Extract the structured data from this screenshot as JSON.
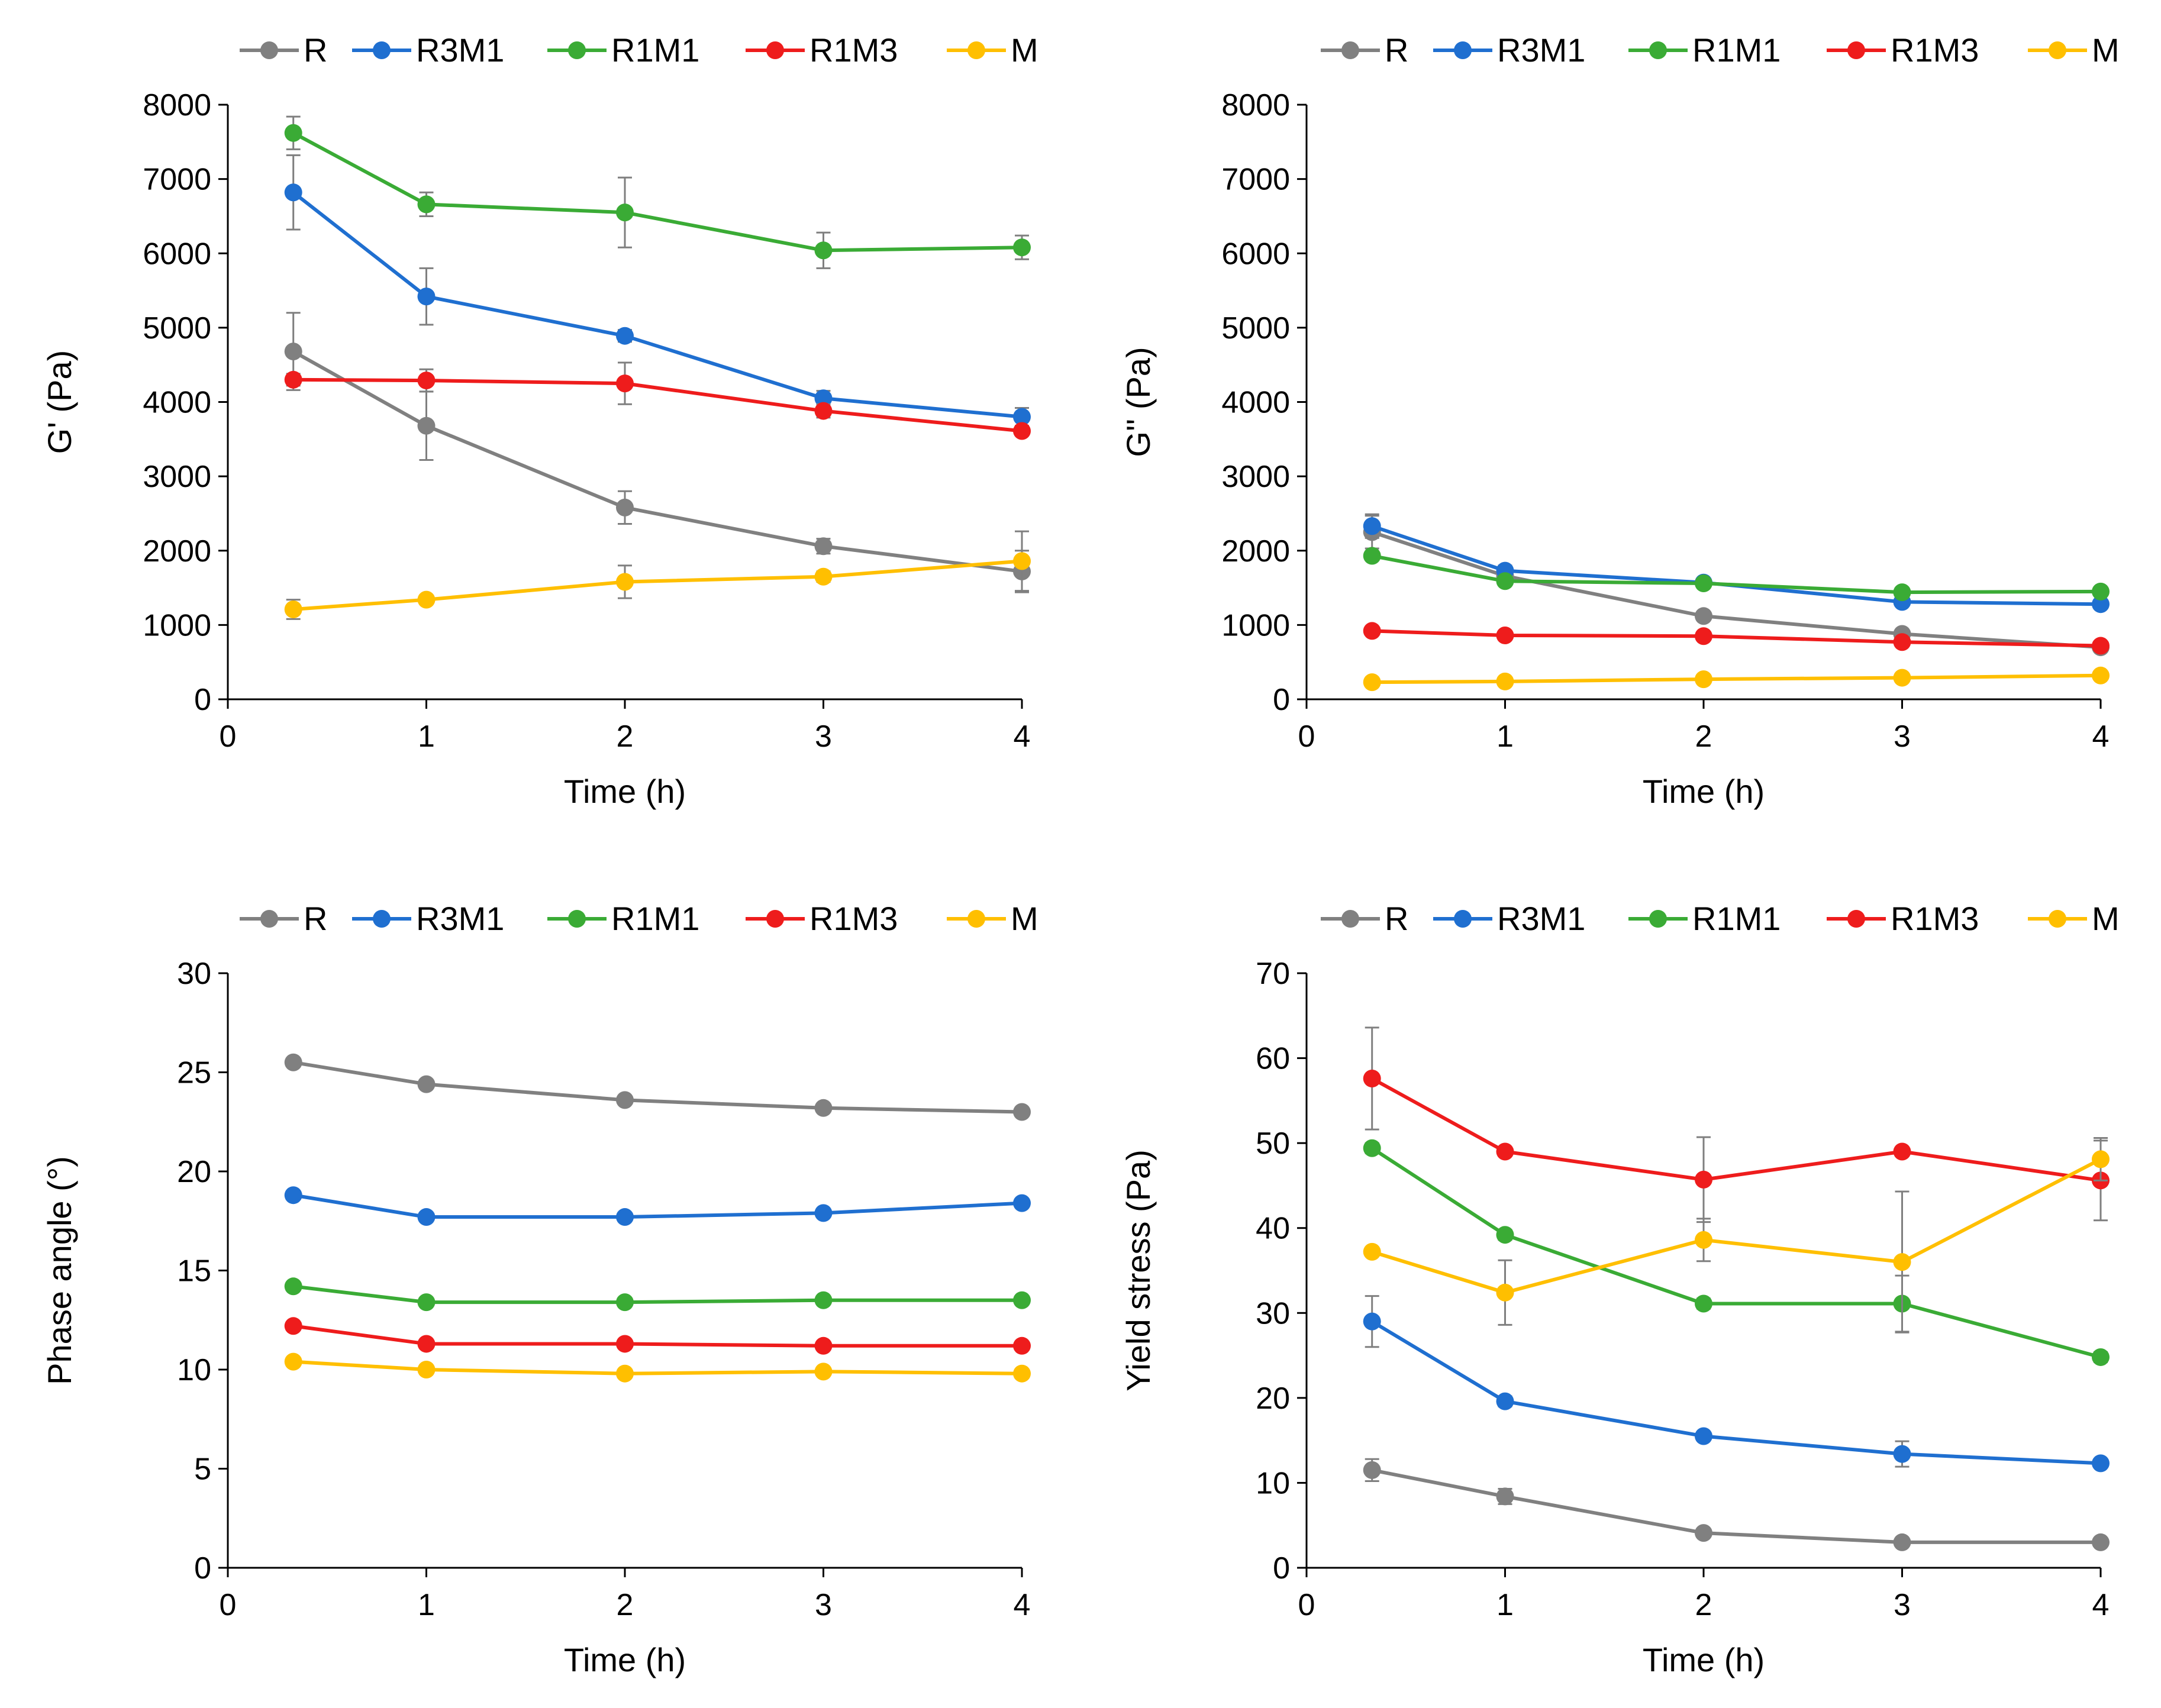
{
  "figure": {
    "description_free": true
  },
  "chart_data": [
    {
      "type": "line",
      "xlabel": "Time (h)",
      "ylabel": "G' (Pa)",
      "xlim": [
        0,
        4
      ],
      "ylim": [
        0,
        8000
      ],
      "xticks": [
        "0",
        "1",
        "2",
        "3",
        "4"
      ],
      "yticks": [
        "0",
        "1000",
        "2000",
        "3000",
        "4000",
        "5000",
        "6000",
        "7000",
        "8000"
      ],
      "ytick_values": [
        0,
        1000,
        2000,
        3000,
        4000,
        5000,
        6000,
        7000,
        8000
      ],
      "x": [
        0.33,
        1,
        2,
        3,
        4
      ],
      "legend_position": "top",
      "series": [
        {
          "name": "R",
          "color": "#808080",
          "values": [
            4680,
            3680,
            2580,
            2060,
            1720
          ],
          "errors": [
            520,
            460,
            220,
            100,
            280
          ]
        },
        {
          "name": "R3M1",
          "color": "#1f6fd0",
          "values": [
            6820,
            5420,
            4890,
            4050,
            3800
          ],
          "errors": [
            500,
            380,
            80,
            100,
            120
          ]
        },
        {
          "name": "R1M1",
          "color": "#3aab35",
          "values": [
            7620,
            6660,
            6550,
            6040,
            6080
          ],
          "errors": [
            220,
            160,
            470,
            240,
            160
          ]
        },
        {
          "name": "R1M3",
          "color": "#ee1c1c",
          "values": [
            4300,
            4290,
            4250,
            3880,
            3610
          ],
          "errors": [
            80,
            150,
            280,
            90,
            60
          ]
        },
        {
          "name": "M",
          "color": "#ffbf00",
          "values": [
            1210,
            1340,
            1580,
            1650,
            1860
          ],
          "errors": [
            130,
            60,
            220,
            70,
            400
          ]
        }
      ]
    },
    {
      "type": "line",
      "xlabel": "Time (h)",
      "ylabel": "G'' (Pa)",
      "xlim": [
        0,
        4
      ],
      "ylim": [
        0,
        8000
      ],
      "xticks": [
        "0",
        "1",
        "2",
        "3",
        "4"
      ],
      "yticks": [
        "0",
        "1000",
        "2000",
        "3000",
        "4000",
        "5000",
        "6000",
        "7000",
        "8000"
      ],
      "ytick_values": [
        0,
        1000,
        2000,
        3000,
        4000,
        5000,
        6000,
        7000,
        8000
      ],
      "x": [
        0.33,
        1,
        2,
        3,
        4
      ],
      "legend_position": "top",
      "series": [
        {
          "name": "R",
          "color": "#808080",
          "values": [
            2250,
            1660,
            1120,
            880,
            700
          ],
          "errors": [
            220,
            60,
            60,
            50,
            40
          ]
        },
        {
          "name": "R3M1",
          "color": "#1f6fd0",
          "values": [
            2330,
            1730,
            1570,
            1310,
            1280
          ],
          "errors": [
            160,
            70,
            40,
            40,
            40
          ]
        },
        {
          "name": "R1M1",
          "color": "#3aab35",
          "values": [
            1930,
            1590,
            1560,
            1440,
            1450
          ],
          "errors": [
            40,
            40,
            40,
            40,
            40
          ]
        },
        {
          "name": "R1M3",
          "color": "#ee1c1c",
          "values": [
            920,
            860,
            850,
            770,
            720
          ],
          "errors": [
            30,
            30,
            30,
            30,
            30
          ]
        },
        {
          "name": "M",
          "color": "#ffbf00",
          "values": [
            230,
            240,
            270,
            290,
            320
          ],
          "errors": [
            20,
            20,
            20,
            20,
            20
          ]
        }
      ]
    },
    {
      "type": "line",
      "xlabel": "Time (h)",
      "ylabel": "Phase angle (°)",
      "xlim": [
        0,
        4
      ],
      "ylim": [
        0,
        30
      ],
      "xticks": [
        "0",
        "1",
        "2",
        "3",
        "4"
      ],
      "yticks": [
        "0",
        "5",
        "10",
        "15",
        "20",
        "25",
        "30"
      ],
      "ytick_values": [
        0,
        5,
        10,
        15,
        20,
        25,
        30
      ],
      "x": [
        0.33,
        1,
        2,
        3,
        4
      ],
      "legend_position": "top",
      "series": [
        {
          "name": "R",
          "color": "#808080",
          "values": [
            25.5,
            24.4,
            23.6,
            23.2,
            23.0
          ],
          "errors": [
            0.1,
            0.1,
            0.1,
            0.1,
            0.1
          ]
        },
        {
          "name": "R3M1",
          "color": "#1f6fd0",
          "values": [
            18.8,
            17.7,
            17.7,
            17.9,
            18.4
          ],
          "errors": [
            0.1,
            0.1,
            0.1,
            0.1,
            0.1
          ]
        },
        {
          "name": "R1M1",
          "color": "#3aab35",
          "values": [
            14.2,
            13.4,
            13.4,
            13.5,
            13.5
          ],
          "errors": [
            0.1,
            0.1,
            0.1,
            0.1,
            0.1
          ]
        },
        {
          "name": "R1M3",
          "color": "#ee1c1c",
          "values": [
            12.2,
            11.3,
            11.3,
            11.2,
            11.2
          ],
          "errors": [
            0.1,
            0.1,
            0.1,
            0.1,
            0.1
          ]
        },
        {
          "name": "M",
          "color": "#ffbf00",
          "values": [
            10.4,
            10.0,
            9.8,
            9.9,
            9.8
          ],
          "errors": [
            0.1,
            0.1,
            0.1,
            0.1,
            0.1
          ]
        }
      ]
    },
    {
      "type": "line",
      "xlabel": "Time (h)",
      "ylabel": "Yield stress (Pa)",
      "xlim": [
        0,
        4
      ],
      "ylim": [
        0,
        70
      ],
      "xticks": [
        "0",
        "1",
        "2",
        "3",
        "4"
      ],
      "yticks": [
        "0",
        "10",
        "20",
        "30",
        "40",
        "50",
        "60",
        "70"
      ],
      "ytick_values": [
        0,
        10,
        20,
        30,
        40,
        50,
        60,
        70
      ],
      "x": [
        0.33,
        1,
        2,
        3,
        4
      ],
      "legend_position": "top",
      "series": [
        {
          "name": "R",
          "color": "#808080",
          "values": [
            11.5,
            8.4,
            4.1,
            3.0,
            3.0
          ],
          "errors": [
            1.3,
            0.9,
            0.5,
            0.4,
            0.4
          ]
        },
        {
          "name": "R3M1",
          "color": "#1f6fd0",
          "values": [
            29.0,
            19.6,
            15.5,
            13.4,
            12.3
          ],
          "errors": [
            3.0,
            0.6,
            0.5,
            1.5,
            0.5
          ]
        },
        {
          "name": "R1M1",
          "color": "#3aab35",
          "values": [
            49.4,
            39.2,
            31.1,
            31.1,
            24.8
          ],
          "errors": [
            0.6,
            0.6,
            0.6,
            3.3,
            0.6
          ]
        },
        {
          "name": "R1M3",
          "color": "#ee1c1c",
          "values": [
            57.6,
            49.0,
            45.7,
            49.0,
            45.6
          ],
          "errors": [
            6.0,
            0.5,
            5.0,
            0.5,
            4.7
          ]
        },
        {
          "name": "M",
          "color": "#ffbf00",
          "values": [
            37.2,
            32.4,
            38.6,
            36.0,
            48.1
          ],
          "errors": [
            0.5,
            3.8,
            2.5,
            8.3,
            2.5
          ]
        }
      ]
    }
  ]
}
